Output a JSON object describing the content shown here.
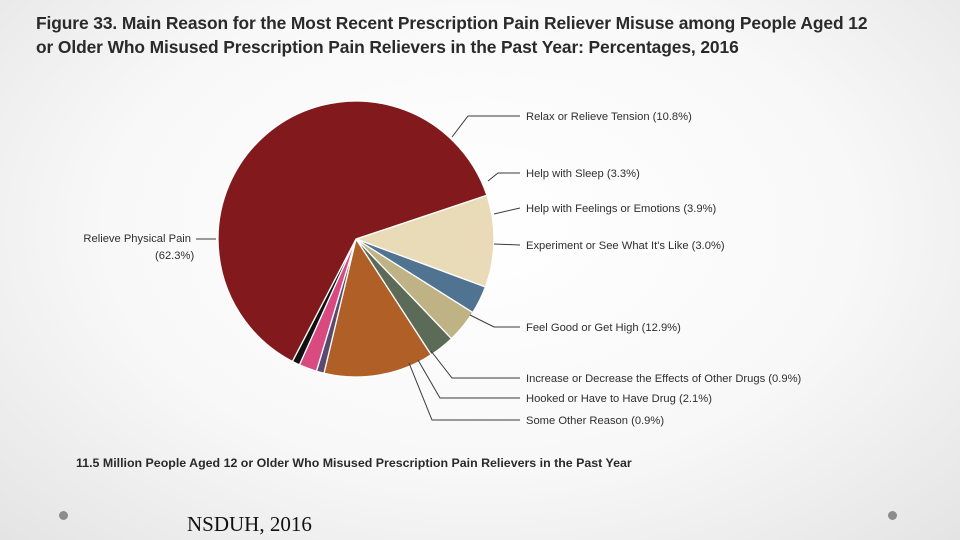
{
  "title": {
    "line1": "Figure 33. Main Reason for the Most Recent Prescription Pain Reliever Misuse among People Aged 12",
    "line2": "or Older Who Misused Prescription Pain Relievers in the Past Year: Percentages, 2016"
  },
  "chart_data": {
    "type": "pie",
    "title": "Figure 33. Main Reason for the Most Recent Prescription Pain Reliever Misuse among People Aged 12 or Older Who Misused Prescription Pain Relievers in the Past Year: Percentages, 2016",
    "unit": "%",
    "slices": [
      {
        "label": "Relax or Relieve Tension (10.8%)",
        "value": 10.8,
        "color": "#e9dbb8"
      },
      {
        "label": "Help with Sleep (3.3%)",
        "value": 3.3,
        "color": "#4f7390"
      },
      {
        "label": "Help with Feelings or Emotions (3.9%)",
        "value": 3.9,
        "color": "#bfb386"
      },
      {
        "label": "Experiment or See What It's Like (3.0%)",
        "value": 3.0,
        "color": "#5c6a58"
      },
      {
        "label": "Feel Good or Get High (12.9%)",
        "value": 12.9,
        "color": "#b05f26"
      },
      {
        "label": "Increase or Decrease the Effects of Other Drugs (0.9%)",
        "value": 0.9,
        "color": "#5a4a70"
      },
      {
        "label": "Hooked or Have to Have Drug (2.1%)",
        "value": 2.1,
        "color": "#d84a80"
      },
      {
        "label": "Some Other Reason (0.9%)",
        "value": 0.9,
        "color": "#111111"
      },
      {
        "label": "Relieve Physical Pain",
        "label2": "(62.3%)",
        "value": 62.3,
        "color": "#821a1d"
      }
    ]
  },
  "footnote": "11.5 Million People Aged 12 or Older Who Misused Prescription Pain Relievers in the Past Year",
  "source": "NSDUH, 2016"
}
